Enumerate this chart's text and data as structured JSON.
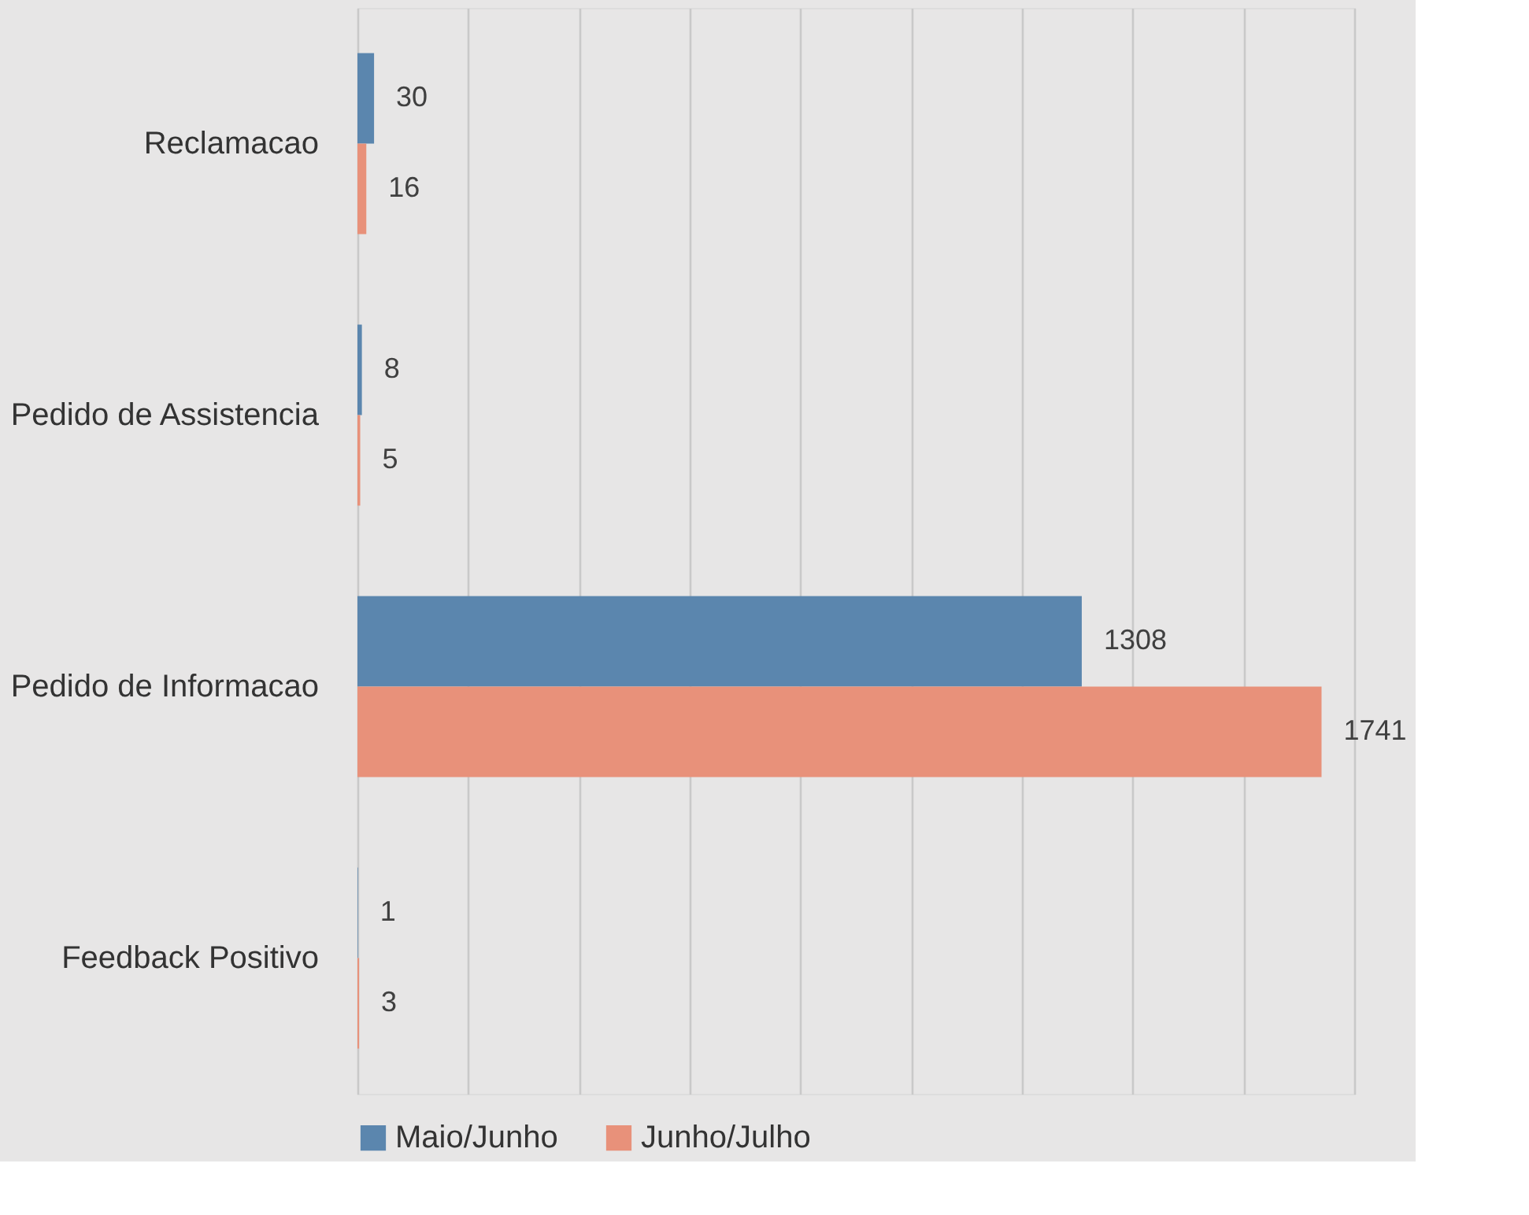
{
  "chart_data": {
    "type": "bar",
    "orientation": "horizontal",
    "categories": [
      "Reclamacao",
      "Pedido de Assistencia",
      "Pedido de Informacao",
      "Feedback Positivo"
    ],
    "series": [
      {
        "name": "Maio/Junho",
        "color": "#5b86ae",
        "values": [
          30,
          8,
          1308,
          1
        ]
      },
      {
        "name": "Junho/Julho",
        "color": "#e8917a",
        "values": [
          16,
          5,
          1741,
          3
        ]
      }
    ],
    "xlim": [
      0,
      1800
    ],
    "xticks": [
      {
        "value": 0,
        "label": null
      },
      {
        "value": 200,
        "label": null
      },
      {
        "value": 400,
        "label": null
      },
      {
        "value": 600,
        "label": null
      },
      {
        "value": 800,
        "label": null
      },
      {
        "value": 1000,
        "label": null
      },
      {
        "value": 1200,
        "label": null
      },
      {
        "value": 1400,
        "label": null
      },
      {
        "value": 1600,
        "label": null
      },
      {
        "value": 1800,
        "label": null
      }
    ],
    "tick_labels": "y",
    "grid": "x",
    "legend": "bottom",
    "data_labels": true
  }
}
